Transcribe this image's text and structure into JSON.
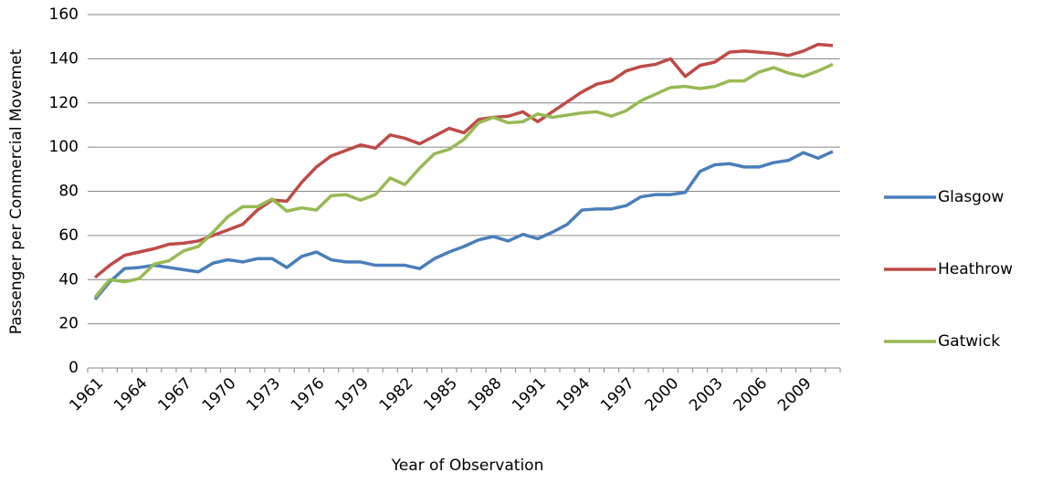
{
  "chart_data": {
    "type": "line",
    "x_label": "Year of Observation",
    "y_label": "Passenger per Commercial Movemet",
    "categories": [
      "1961",
      null,
      null,
      "1964",
      null,
      null,
      "1967",
      null,
      null,
      "1970",
      null,
      null,
      "1973",
      null,
      null,
      "1976",
      null,
      null,
      "1979",
      null,
      null,
      "1982",
      null,
      null,
      "1985",
      null,
      null,
      "1988",
      null,
      null,
      "1991",
      null,
      null,
      "1994",
      null,
      null,
      "1997",
      null,
      null,
      "2000",
      null,
      null,
      "2003",
      null,
      null,
      "2006",
      null,
      null,
      "2009",
      null,
      null
    ],
    "series": [
      {
        "name": "Glasgow",
        "color": "#4a7ebb",
        "values": [
          31,
          39,
          45,
          45.5,
          46.5,
          45.5,
          44.5,
          43.5,
          47.5,
          49,
          48,
          49.5,
          49.5,
          45.5,
          50.5,
          52.5,
          49,
          48,
          48,
          46.5,
          46.5,
          46.5,
          45,
          49.5,
          52.5,
          55,
          58,
          59.5,
          57.5,
          60.5,
          58.5,
          61.5,
          65,
          71.5,
          72,
          72,
          73.5,
          77.5,
          78.5,
          78.5,
          79.5,
          89,
          92,
          92.5,
          91,
          91,
          93,
          94,
          97.5,
          95,
          98
        ]
      },
      {
        "name": "Heathrow",
        "color": "#be4b48",
        "values": [
          41,
          46.5,
          51,
          52.5,
          54,
          56,
          56.5,
          57.5,
          60,
          62.5,
          65,
          71.5,
          76,
          75.5,
          84,
          91,
          96,
          98.5,
          101,
          99.5,
          105.5,
          104,
          101.5,
          105,
          108.5,
          106.5,
          112.5,
          113.5,
          114,
          116,
          111.5,
          116,
          120.5,
          125,
          128.5,
          130,
          134.5,
          136.5,
          137.5,
          140,
          132,
          137,
          138.5,
          143,
          143.5,
          143,
          142.5,
          141.5,
          143.5,
          146.5,
          146
        ]
      },
      {
        "name": "Gatwick",
        "color": "#98b954",
        "values": [
          32,
          40,
          39,
          40.5,
          47,
          48.5,
          53,
          55,
          61.5,
          68.5,
          73,
          73,
          76.5,
          71,
          72.5,
          71.5,
          78,
          78.5,
          76,
          78.5,
          86,
          83,
          90.5,
          97,
          99,
          103.5,
          111,
          113.5,
          111,
          111.5,
          115,
          113.5,
          114.5,
          115.5,
          116,
          114,
          116.5,
          121,
          124,
          127,
          127.5,
          126.5,
          127.5,
          130,
          130,
          134,
          136,
          133.5,
          132,
          134.5,
          137.5
        ]
      }
    ],
    "ylim": [
      0,
      160
    ],
    "yticks": [
      0,
      20,
      40,
      60,
      80,
      100,
      120,
      140,
      160
    ],
    "grid": true,
    "legend": "right"
  }
}
